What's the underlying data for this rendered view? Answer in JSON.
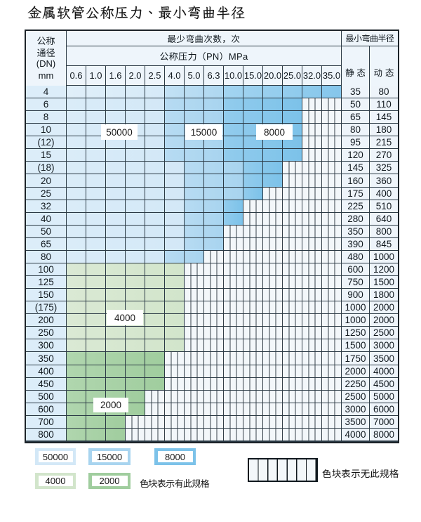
{
  "page_title": "金属软管公称压力、最小弯曲半径",
  "table": {
    "header": {
      "dn_lines": [
        "公称",
        "通径",
        "(DN)",
        "mm"
      ],
      "bend_cycles_title": "最少弯曲次数，次",
      "pressure_title": "公称压力（PN）MPa",
      "radius_title": "最小弯曲半径",
      "static_label": "静 态",
      "dynamic_label": "动 态",
      "pn_columns": [
        "0.6",
        "1.0",
        "1.6",
        "2.0",
        "2.5",
        "4.0",
        "5.0",
        "6.3",
        "10.0",
        "15.0",
        "20.0",
        "25.0",
        "32.0",
        "35.0"
      ]
    },
    "rows": [
      {
        "dn": "4",
        "zones": "LLLLLMMMDDDDDD",
        "static": "35",
        "dynamic": "80"
      },
      {
        "dn": "6",
        "zones": "LLLLLMMMDDDDHH",
        "static": "50",
        "dynamic": "110"
      },
      {
        "dn": "8",
        "zones": "LLLLLMMMDDDDHH",
        "static": "65",
        "dynamic": "145"
      },
      {
        "dn": "10",
        "zones": "LLLLLMMMDDDDHH",
        "static": "80",
        "dynamic": "180"
      },
      {
        "dn": "(12)",
        "zones": "LLLLLMMMDDDDHH",
        "static": "95",
        "dynamic": "215"
      },
      {
        "dn": "15",
        "zones": "LLLLLMMMDDDDHH",
        "static": "120",
        "dynamic": "270"
      },
      {
        "dn": "(18)",
        "zones": "LLLLLLMMMDDHHH",
        "static": "145",
        "dynamic": "325"
      },
      {
        "dn": "20",
        "zones": "LLLLLLMMMDDHHH",
        "static": "160",
        "dynamic": "360"
      },
      {
        "dn": "25",
        "zones": "LLLLLLMMMDHHHH",
        "static": "175",
        "dynamic": "400"
      },
      {
        "dn": "32",
        "zones": "LLLLLLMMDHHHHH",
        "static": "225",
        "dynamic": "510"
      },
      {
        "dn": "40",
        "zones": "LLLLLLMMDHHHHH",
        "static": "280",
        "dynamic": "640"
      },
      {
        "dn": "50",
        "zones": "LLLLLLMMHHHHHH",
        "static": "350",
        "dynamic": "800"
      },
      {
        "dn": "65",
        "zones": "LLLLLLMMHHHHHH",
        "static": "390",
        "dynamic": "845"
      },
      {
        "dn": "80",
        "zones": "LLLLLMMHHHHHHH",
        "static": "480",
        "dynamic": "1000"
      },
      {
        "dn": "100",
        "zones": "GGGGGGHHHHHHHH",
        "static": "600",
        "dynamic": "1200"
      },
      {
        "dn": "125",
        "zones": "GGGGGGHHHHHHHH",
        "static": "750",
        "dynamic": "1500"
      },
      {
        "dn": "150",
        "zones": "GGGGGGHHHHHHHH",
        "static": "900",
        "dynamic": "1800"
      },
      {
        "dn": "(175)",
        "zones": "GGGGGGHHHHHHHH",
        "static": "1000",
        "dynamic": "2000"
      },
      {
        "dn": "200",
        "zones": "GGGGGGHHHHHHHH",
        "static": "1000",
        "dynamic": "2000"
      },
      {
        "dn": "250",
        "zones": "GGGGGGHHHHHHHH",
        "static": "1250",
        "dynamic": "2500"
      },
      {
        "dn": "300",
        "zones": "GGGGGGHHHHHHHH",
        "static": "1500",
        "dynamic": "3000"
      },
      {
        "dn": "350",
        "zones": "EEEEEHHHHHHHHH",
        "static": "1750",
        "dynamic": "3500"
      },
      {
        "dn": "400",
        "zones": "EEEEEHHHHHHHHH",
        "static": "2000",
        "dynamic": "4000"
      },
      {
        "dn": "450",
        "zones": "EEEEEHHHHHHHHH",
        "static": "2250",
        "dynamic": "4500"
      },
      {
        "dn": "500",
        "zones": "EEEEHHHHHHHHHH",
        "static": "2500",
        "dynamic": "5000"
      },
      {
        "dn": "600",
        "zones": "EEEEHHHHHHHHHH",
        "static": "3000",
        "dynamic": "6000"
      },
      {
        "dn": "700",
        "zones": "EEEHHHHHHHHHHH",
        "static": "3500",
        "dynamic": "7000"
      },
      {
        "dn": "800",
        "zones": "EEEHHHHHHHHHHH",
        "static": "4000",
        "dynamic": "8000"
      }
    ],
    "zone_colors": {
      "L": "#d3e8f7",
      "M": "#a8d4ef",
      "D": "#7cc2e9",
      "G": "#d2e5cb",
      "E": "#a0cd9e",
      "H": "#f3f7fa"
    },
    "cell_labels": [
      {
        "text": "50000",
        "row": 3,
        "cols": [
          2,
          3
        ]
      },
      {
        "text": "15000",
        "row": 3,
        "cols": [
          6,
          7
        ]
      },
      {
        "text": "8000",
        "row": 3,
        "cols": [
          10,
          11
        ]
      },
      {
        "text": "4000",
        "row": 17,
        "cols": [
          2,
          3
        ]
      },
      {
        "text": "2000",
        "row": 24,
        "cols": [
          1,
          2
        ]
      }
    ]
  },
  "legend": {
    "spec_items": [
      {
        "label": "50000",
        "color": "#d3e8f7"
      },
      {
        "label": "15000",
        "color": "#a8d4ef"
      },
      {
        "label": "8000",
        "color": "#7cc2e9"
      },
      {
        "label": "4000",
        "color": "#d2e5cb"
      },
      {
        "label": "2000",
        "color": "#a0cd9e"
      }
    ],
    "has_spec_text": "色块表示有此规格",
    "no_spec_text": "色块表示无此规格"
  },
  "chart_data": {
    "type": "table",
    "title": "金属软管公称压力、最小弯曲半径",
    "columns_pn_mpa": [
      0.6,
      1.0,
      1.6,
      2.0,
      2.5,
      4.0,
      5.0,
      6.3,
      10.0,
      15.0,
      20.0,
      25.0,
      32.0,
      35.0
    ],
    "rows_dn_mm": [
      "4",
      "6",
      "8",
      "10",
      "(12)",
      "15",
      "(18)",
      "20",
      "25",
      "32",
      "40",
      "50",
      "65",
      "80",
      "100",
      "125",
      "150",
      "(175)",
      "200",
      "250",
      "300",
      "350",
      "400",
      "450",
      "500",
      "600",
      "700",
      "800"
    ],
    "min_bend_radius_static": [
      35,
      50,
      65,
      80,
      95,
      120,
      145,
      160,
      175,
      225,
      280,
      350,
      390,
      480,
      600,
      750,
      900,
      1000,
      1000,
      1250,
      1500,
      1750,
      2000,
      2250,
      2500,
      3000,
      3500,
      4000
    ],
    "min_bend_radius_dynamic": [
      80,
      110,
      145,
      180,
      215,
      270,
      325,
      360,
      400,
      510,
      640,
      800,
      845,
      1000,
      1200,
      1500,
      1800,
      2000,
      2000,
      2500,
      3000,
      3500,
      4000,
      4500,
      5000,
      6000,
      7000,
      8000
    ],
    "bend_cycle_zones": {
      "L": 50000,
      "M": 15000,
      "D": 8000,
      "G": 4000,
      "E": 2000,
      "H": null
    },
    "zone_matrix": [
      "LLLLLMMMDDDDDD",
      "LLLLLMMMDDDDHH",
      "LLLLLMMMDDDDHH",
      "LLLLLMMMDDDDHH",
      "LLLLLMMMDDDDHH",
      "LLLLLMMMDDDDHH",
      "LLLLLLMMMDDHHH",
      "LLLLLLMMMDDHHH",
      "LLLLLLMMMDHHHH",
      "LLLLLLMMDHHHHH",
      "LLLLLLMMDHHHHH",
      "LLLLLLMMHHHHHH",
      "LLLLLLMMHHHHHH",
      "LLLLLMMHHHHHHH",
      "GGGGGGHHHHHHHH",
      "GGGGGGHHHHHHHH",
      "GGGGGGHHHHHHHH",
      "GGGGGGHHHHHHHH",
      "GGGGGGHHHHHHHH",
      "GGGGGGHHHHHHHH",
      "GGGGGGHHHHHHHH",
      "EEEEEHHHHHHHHH",
      "EEEEEHHHHHHHHH",
      "EEEEEHHHHHHHHH",
      "EEEEHHHHHHHHHH",
      "EEEEHHHHHHHHHH",
      "EEEHHHHHHHHHHH",
      "EEEHHHHHHHHHHH"
    ]
  }
}
